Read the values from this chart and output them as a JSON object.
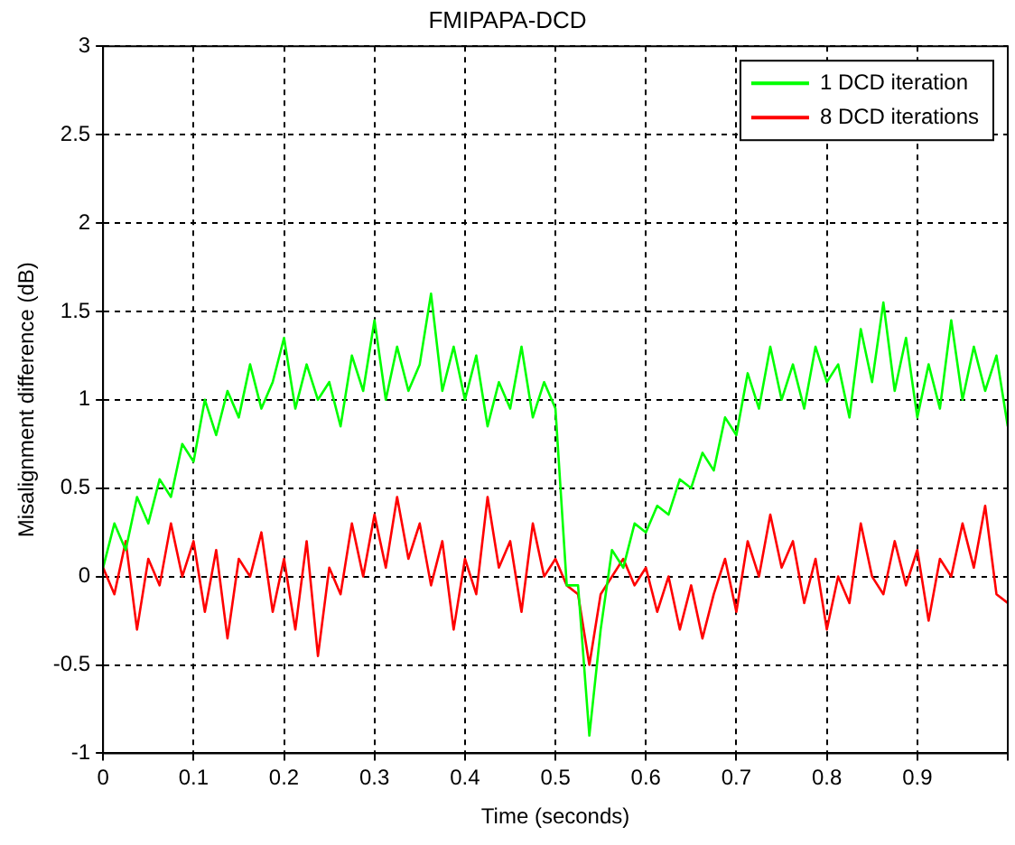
{
  "chart_data": {
    "type": "line",
    "title": "FMIPAPA-DCD",
    "xlabel": "Time (seconds)",
    "ylabel": "Misalignment difference (dB)",
    "x": [
      0,
      0.0125,
      0.025,
      0.0375,
      0.05,
      0.0625,
      0.075,
      0.0875,
      0.1,
      0.1125,
      0.125,
      0.1375,
      0.15,
      0.1625,
      0.175,
      0.1875,
      0.2,
      0.2125,
      0.225,
      0.2375,
      0.25,
      0.2625,
      0.275,
      0.2875,
      0.3,
      0.3125,
      0.325,
      0.3375,
      0.35,
      0.3625,
      0.375,
      0.3875,
      0.4,
      0.4125,
      0.425,
      0.4375,
      0.45,
      0.4625,
      0.475,
      0.4875,
      0.5,
      0.5125,
      0.525,
      0.5375,
      0.55,
      0.5625,
      0.575,
      0.5875,
      0.6,
      0.6125,
      0.625,
      0.6375,
      0.65,
      0.6625,
      0.675,
      0.6875,
      0.7,
      0.7125,
      0.725,
      0.7375,
      0.75,
      0.7625,
      0.775,
      0.7875,
      0.8,
      0.8125,
      0.825,
      0.8375,
      0.85,
      0.8625,
      0.875,
      0.8875,
      0.9,
      0.9125,
      0.925,
      0.9375,
      0.95,
      0.9625,
      0.975,
      0.9875,
      1
    ],
    "series": [
      {
        "name": "1 DCD iteration",
        "color": "#00ff00",
        "values": [
          0.05,
          0.3,
          0.15,
          0.45,
          0.3,
          0.55,
          0.45,
          0.75,
          0.65,
          1.0,
          0.8,
          1.05,
          0.9,
          1.2,
          0.95,
          1.1,
          1.35,
          0.95,
          1.2,
          1.0,
          1.1,
          0.85,
          1.25,
          1.05,
          1.45,
          1.0,
          1.3,
          1.05,
          1.2,
          1.6,
          1.05,
          1.3,
          1.0,
          1.25,
          0.85,
          1.1,
          0.95,
          1.3,
          0.9,
          1.1,
          0.95,
          -0.05,
          -0.05,
          -0.9,
          -0.3,
          0.15,
          0.05,
          0.3,
          0.25,
          0.4,
          0.35,
          0.55,
          0.5,
          0.7,
          0.6,
          0.9,
          0.8,
          1.15,
          0.95,
          1.3,
          1.0,
          1.2,
          0.95,
          1.3,
          1.1,
          1.2,
          0.9,
          1.4,
          1.1,
          1.55,
          1.05,
          1.35,
          0.9,
          1.2,
          0.95,
          1.45,
          1.0,
          1.3,
          1.05,
          1.25,
          0.85
        ]
      },
      {
        "name": "8 DCD iterations",
        "color": "#ff0000",
        "values": [
          0.05,
          -0.1,
          0.2,
          -0.3,
          0.1,
          -0.05,
          0.3,
          0.0,
          0.2,
          -0.2,
          0.15,
          -0.35,
          0.1,
          0.0,
          0.25,
          -0.2,
          0.1,
          -0.3,
          0.2,
          -0.45,
          0.05,
          -0.1,
          0.3,
          0.0,
          0.35,
          0.05,
          0.45,
          0.1,
          0.3,
          -0.05,
          0.2,
          -0.3,
          0.1,
          -0.1,
          0.45,
          0.05,
          0.2,
          -0.2,
          0.3,
          0.0,
          0.1,
          -0.05,
          -0.1,
          -0.5,
          -0.1,
          0.0,
          0.1,
          -0.05,
          0.05,
          -0.2,
          0.0,
          -0.3,
          -0.05,
          -0.35,
          -0.1,
          0.1,
          -0.2,
          0.2,
          0.0,
          0.35,
          0.05,
          0.2,
          -0.15,
          0.1,
          -0.3,
          0.0,
          -0.15,
          0.3,
          0.0,
          -0.1,
          0.2,
          -0.05,
          0.15,
          -0.25,
          0.1,
          0.0,
          0.3,
          0.05,
          0.4,
          -0.1,
          -0.15
        ]
      }
    ],
    "xlim": [
      0,
      1
    ],
    "xticks": [
      0,
      0.1,
      0.2,
      0.3,
      0.4,
      0.5,
      0.6,
      0.7,
      0.8,
      0.9,
      {
        "value": 1,
        "label": null
      }
    ],
    "ylim": [
      -1,
      3
    ],
    "yticks": [
      -1,
      -0.5,
      0,
      0.5,
      1,
      1.5,
      2,
      2.5,
      3
    ],
    "grid": true,
    "legend": "top right",
    "marker": "none",
    "line_style": "solid"
  }
}
